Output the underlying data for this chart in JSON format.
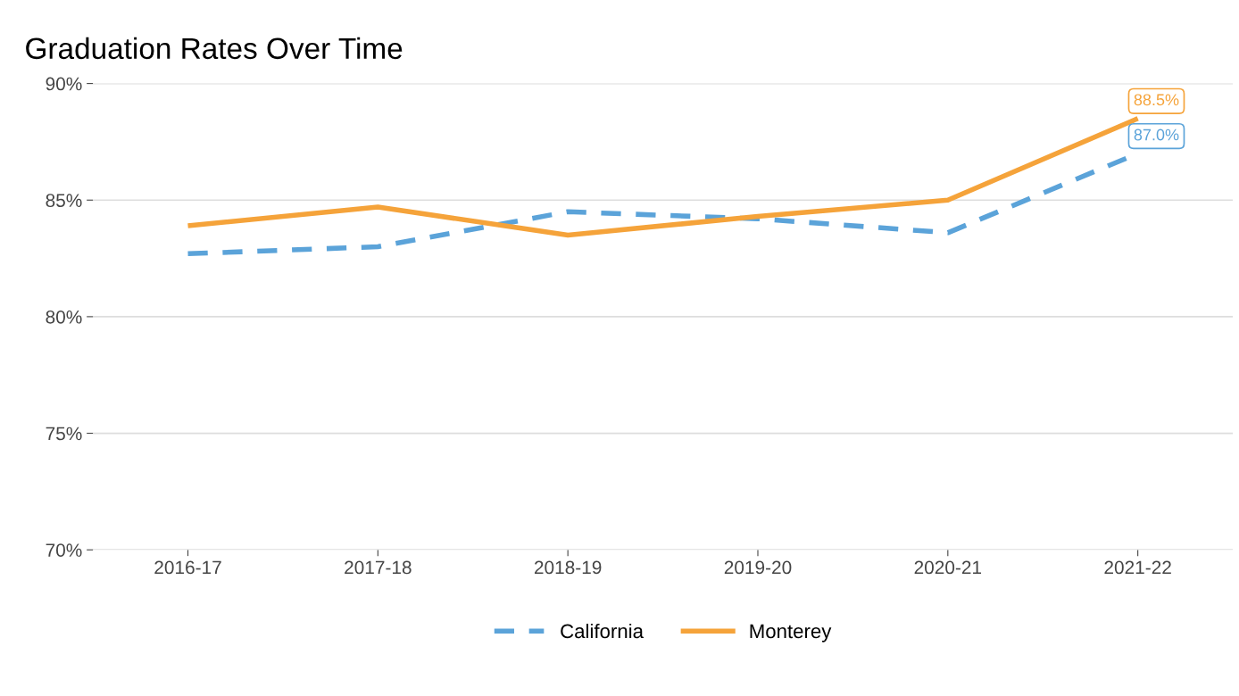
{
  "chart_data": {
    "type": "line",
    "title": "Graduation Rates Over Time",
    "categories": [
      "2016-17",
      "2017-18",
      "2018-19",
      "2019-20",
      "2020-21",
      "2021-22"
    ],
    "series": [
      {
        "name": "California",
        "color": "#5ba3d9",
        "line_style": "dashed",
        "values": [
          82.7,
          83.0,
          84.5,
          84.2,
          83.6,
          87.0
        ]
      },
      {
        "name": "Monterey",
        "color": "#f5a33a",
        "line_style": "solid",
        "values": [
          83.9,
          84.7,
          83.5,
          84.3,
          85.0,
          88.5
        ]
      }
    ],
    "annotations": [
      {
        "text": "88.5%",
        "x": "2021-22",
        "y": 88.5
      },
      {
        "text": "87.0%",
        "x": "2021-22",
        "y": 87.0
      }
    ],
    "ylim": [
      70,
      90
    ],
    "yticks": [
      {
        "value": 70,
        "label": "70%"
      },
      {
        "value": 75,
        "label": "75%"
      },
      {
        "value": 80,
        "label": "80%"
      },
      {
        "value": 85,
        "label": "85%"
      },
      {
        "value": 90,
        "label": "90%"
      }
    ],
    "grid": "y",
    "legend": "bottom",
    "marker": "none"
  }
}
